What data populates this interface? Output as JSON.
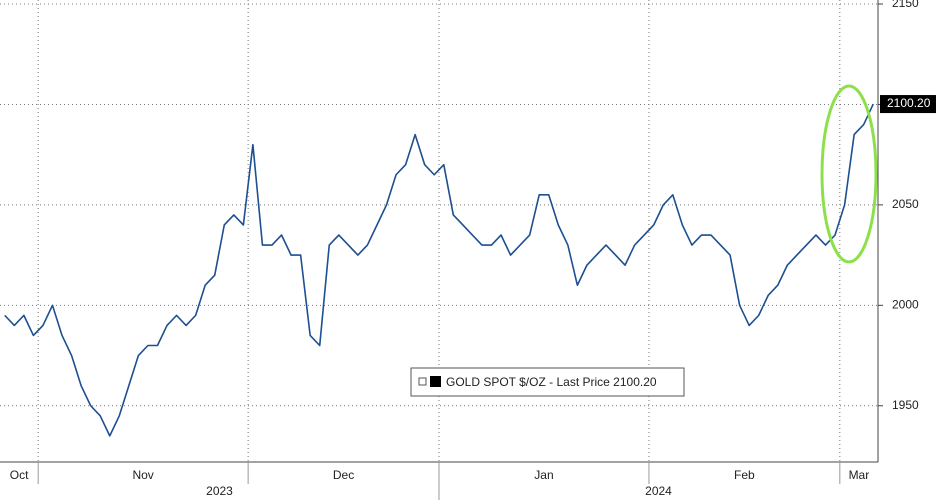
{
  "chart_data": {
    "type": "line",
    "categories": [
      "Oct",
      null,
      null,
      null,
      "Nov",
      null,
      null,
      null,
      null,
      null,
      null,
      null,
      null,
      null,
      null,
      null,
      null,
      null,
      null,
      null,
      null,
      null,
      null,
      null,
      null,
      null,
      "Dec",
      null,
      null,
      null,
      null,
      null,
      null,
      null,
      null,
      null,
      null,
      null,
      null,
      null,
      null,
      null,
      null,
      null,
      null,
      null,
      "Jan",
      null,
      null,
      null,
      null,
      null,
      null,
      null,
      null,
      null,
      null,
      null,
      null,
      null,
      null,
      null,
      null,
      null,
      null,
      null,
      null,
      null,
      "Feb",
      null,
      null,
      null,
      null,
      null,
      null,
      null,
      null,
      null,
      null,
      null,
      null,
      null,
      null,
      null,
      null,
      null,
      null,
      null,
      "Mar",
      null,
      null,
      null
    ],
    "x_groups": [
      {
        "label": "2023",
        "categories": [
          "Oct",
          "Nov",
          "Dec"
        ]
      },
      {
        "label": "2024",
        "categories": [
          "Jan",
          "Feb",
          "Mar"
        ]
      }
    ],
    "series": [
      {
        "name": "GOLD SPOT $/OZ - Last Price",
        "color": "#1d4f91",
        "last_value_label": "2100.20",
        "values": [
          1995,
          1990,
          1995,
          1985,
          1990,
          2000,
          1985,
          1975,
          1960,
          1950,
          1945,
          1935,
          1945,
          1960,
          1975,
          1980,
          1980,
          1990,
          1995,
          1990,
          1995,
          2010,
          2015,
          2040,
          2045,
          2040,
          2080,
          2030,
          2030,
          2035,
          2025,
          2025,
          1985,
          1980,
          2030,
          2035,
          2030,
          2025,
          2030,
          2040,
          2050,
          2065,
          2070,
          2085,
          2070,
          2065,
          2070,
          2045,
          2040,
          2035,
          2030,
          2030,
          2035,
          2025,
          2030,
          2035,
          2055,
          2055,
          2040,
          2030,
          2010,
          2020,
          2025,
          2030,
          2025,
          2020,
          2030,
          2035,
          2040,
          2050,
          2055,
          2040,
          2030,
          2035,
          2035,
          2030,
          2025,
          2000,
          1990,
          1995,
          2005,
          2010,
          2020,
          2025,
          2030,
          2035,
          2030,
          2035,
          2050,
          2085,
          2090,
          2100.2
        ]
      }
    ],
    "ylim": [
      1922,
      2152
    ],
    "yticks": [
      1950,
      2000,
      2050,
      2100,
      2150
    ],
    "grid": true
  }
}
